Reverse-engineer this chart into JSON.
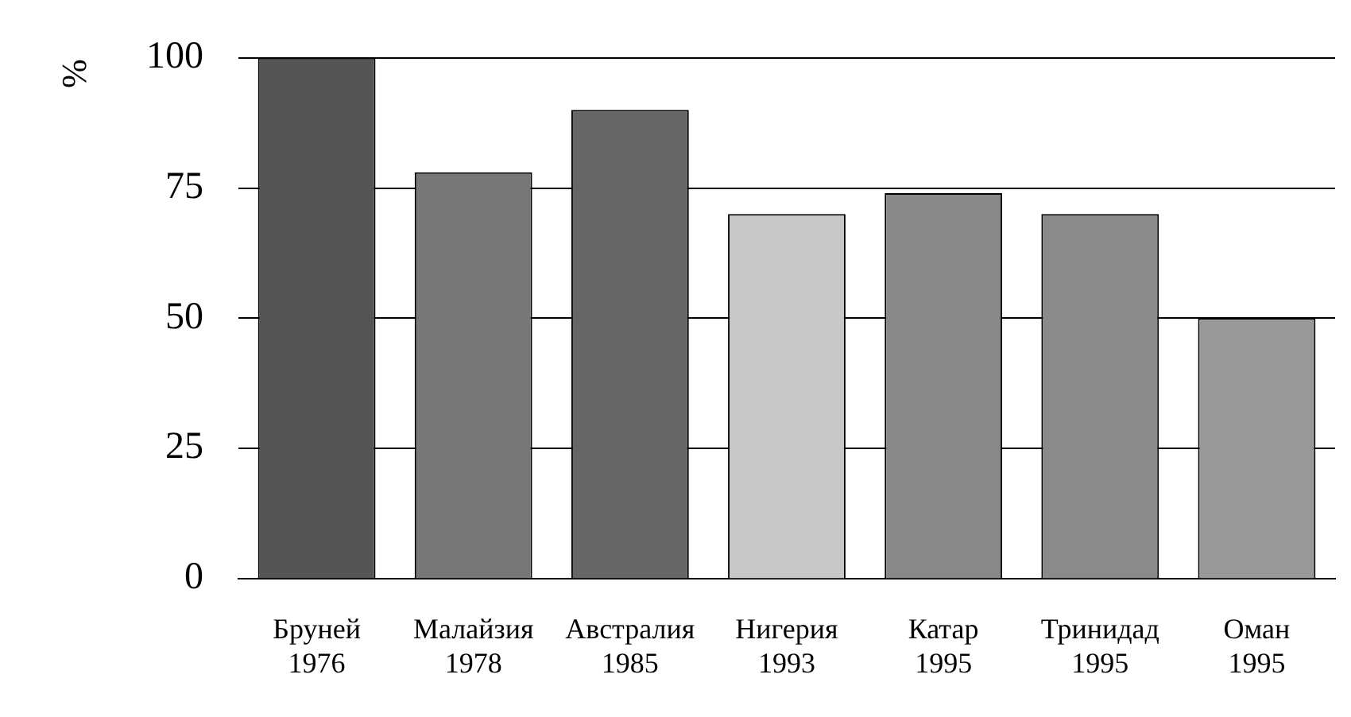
{
  "chart_data": {
    "type": "bar",
    "ylabel": "%",
    "categories": [
      "Бруней 1976",
      "Малайзия 1978",
      "Австралия 1985",
      "Нигерия 1993",
      "Катар 1995",
      "Тринидад 1995",
      "Оман 1995"
    ],
    "values": [
      100,
      78,
      90,
      70,
      74,
      70,
      50
    ],
    "colors": [
      "#555555",
      "#777777",
      "#666666",
      "#c8c8c8",
      "#888888",
      "#8a8a8a",
      "#999999"
    ],
    "ylim": [
      0,
      100
    ],
    "yticks": [
      0,
      25,
      50,
      75,
      100
    ],
    "grid": "y",
    "legend": false
  }
}
